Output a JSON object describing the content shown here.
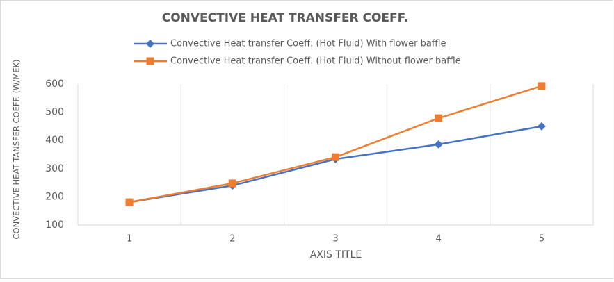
{
  "chart_data": {
    "type": "line",
    "title": "CONVECTIVE HEAT TRANSFER COEFF.",
    "x_label": "AXIS TITLE",
    "y_label": "CONVECTIVE HEAT TANSFER COEFF. (W/MEK)",
    "categories": [
      "1",
      "2",
      "3",
      "4",
      "5"
    ],
    "series": [
      {
        "name": "Convective Heat transfer Coeff. (Hot Fluid) With flower baffle",
        "color": "#4472c4",
        "marker": "diamond",
        "values": [
          181,
          240,
          334,
          386,
          450
        ]
      },
      {
        "name": "Convective Heat transfer Coeff. (Hot Fluid) Without flower baffle",
        "color": "#ed7d31",
        "marker": "square",
        "values": [
          181,
          248,
          341,
          479,
          593
        ]
      }
    ],
    "ylim": [
      100,
      600
    ],
    "yticks": [
      100,
      200,
      300,
      400,
      500,
      600
    ],
    "grid": true,
    "legend": "top"
  }
}
